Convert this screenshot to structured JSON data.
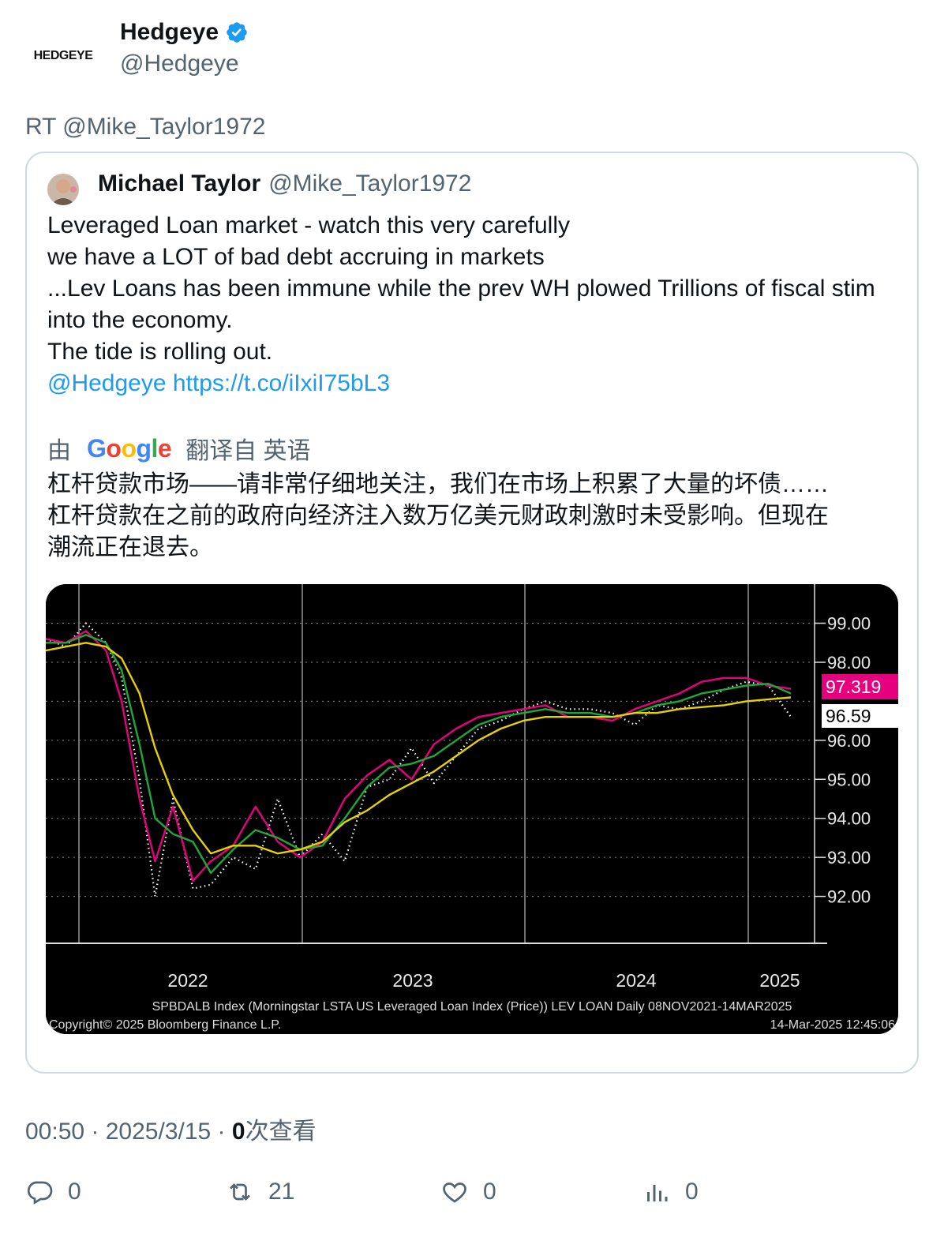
{
  "author": {
    "logo_text": "HEDGEYE",
    "display_name": "Hedgeye",
    "handle": "@Hedgeye"
  },
  "retweet_line": "RT @Mike_Taylor1972",
  "quoted": {
    "display_name": "Michael Taylor",
    "handle": "@Mike_Taylor1972",
    "lines": [
      "Leveraged Loan market - watch this very carefully",
      "we have a LOT of bad debt accruing in markets",
      "...Lev Loans has been immune while the prev WH plowed Trillions of fiscal stim into the economy.",
      "The tide is rolling out."
    ],
    "mention": "@Hedgeye",
    "link": "https://t.co/iIxiI75bL3",
    "translate": {
      "by": "由",
      "brand": "Google",
      "from": "翻译自 英语"
    },
    "translation_lines": [
      "杠杆贷款市场——请非常仔细地关注，我们在市场上积累了大量的坏债……",
      "杠杆贷款在之前的政府向经济注入数万亿美元财政刺激时未受影响。但现在",
      "潮流正在退去。"
    ]
  },
  "meta": {
    "time": "00:50",
    "sep1": " · ",
    "date": "2025/3/15",
    "sep2": " · ",
    "views_count": "0",
    "views_label": "次查看"
  },
  "actions": {
    "replies": "0",
    "retweets": "21",
    "likes": "0",
    "views": "0"
  },
  "icons": {
    "verified": "verified-badge-icon",
    "reply": "reply-icon",
    "retweet": "retweet-icon",
    "like": "heart-icon",
    "views": "analytics-icon"
  },
  "colors": {
    "link": "#1d9bf0",
    "muted": "#536471",
    "price_line": "#ffffff",
    "ma_fast": "#e6007e",
    "ma_mid": "#1ea83a",
    "ma_slow": "#e6d200",
    "last_label_bg": "#e6007e"
  },
  "chart_data": {
    "type": "line",
    "footer": "SPBDALB Index (Morningstar LSTA US Leveraged Loan Index (Price)) LEV LOAN  Daily 08NOV2021-14MAR2025",
    "copyright": "Copyright© 2025 Bloomberg Finance L.P.",
    "timestamp": "14-Mar-2025 12:45:06",
    "x_ticks": [
      "2022",
      "2023",
      "2024",
      "2025"
    ],
    "y_ticks": [
      "99.00",
      "98.00",
      "96.00",
      "95.00",
      "94.00",
      "93.00",
      "92.00"
    ],
    "ylim": [
      91,
      99.8
    ],
    "last_labels": [
      {
        "text": "97.319",
        "value": 97.319,
        "color": "#e6007e"
      },
      {
        "text": "96.59",
        "value": 96.59,
        "color": "#ffffff"
      }
    ],
    "x": [
      2021.86,
      2021.95,
      2022.04,
      2022.13,
      2022.2,
      2022.28,
      2022.35,
      2022.43,
      2022.52,
      2022.6,
      2022.7,
      2022.8,
      2022.9,
      2023.0,
      2023.1,
      2023.2,
      2023.3,
      2023.4,
      2023.5,
      2023.6,
      2023.7,
      2023.8,
      2023.9,
      2024.0,
      2024.1,
      2024.2,
      2024.3,
      2024.4,
      2024.5,
      2024.6,
      2024.7,
      2024.8,
      2024.9,
      2025.0,
      2025.1,
      2025.2
    ],
    "series": [
      {
        "color": "white",
        "style": "dotted",
        "values": [
          98.6,
          98.4,
          99.0,
          98.5,
          97.6,
          95.0,
          92.0,
          94.5,
          92.2,
          92.3,
          93.0,
          92.7,
          94.5,
          93.0,
          93.6,
          92.9,
          94.8,
          95.0,
          95.8,
          94.9,
          95.6,
          96.3,
          96.5,
          96.8,
          97.0,
          96.8,
          96.8,
          96.7,
          96.4,
          96.9,
          96.8,
          97.0,
          97.3,
          97.5,
          97.4,
          96.6
        ]
      },
      {
        "color": "magenta",
        "values": [
          98.6,
          98.5,
          98.8,
          98.3,
          97.0,
          94.5,
          92.9,
          94.3,
          92.4,
          92.9,
          93.3,
          94.3,
          93.4,
          93.0,
          93.4,
          94.5,
          95.1,
          95.5,
          95.0,
          95.9,
          96.3,
          96.6,
          96.7,
          96.8,
          96.9,
          96.6,
          96.6,
          96.5,
          96.8,
          97.0,
          97.2,
          97.5,
          97.6,
          97.6,
          97.4,
          97.32
        ]
      },
      {
        "color": "green",
        "values": [
          98.5,
          98.5,
          98.7,
          98.5,
          97.8,
          95.9,
          94.0,
          93.6,
          93.4,
          92.6,
          93.2,
          93.7,
          93.5,
          93.2,
          93.3,
          94.0,
          94.8,
          95.3,
          95.4,
          95.6,
          96.0,
          96.4,
          96.6,
          96.7,
          96.8,
          96.7,
          96.7,
          96.6,
          96.7,
          96.9,
          97.0,
          97.2,
          97.3,
          97.4,
          97.45,
          97.2
        ]
      },
      {
        "color": "yellow",
        "values": [
          98.3,
          98.4,
          98.5,
          98.4,
          98.1,
          97.2,
          95.8,
          94.6,
          93.7,
          93.1,
          93.3,
          93.3,
          93.1,
          93.2,
          93.4,
          93.9,
          94.2,
          94.6,
          94.9,
          95.2,
          95.6,
          96.0,
          96.3,
          96.5,
          96.6,
          96.6,
          96.6,
          96.6,
          96.7,
          96.7,
          96.8,
          96.85,
          96.9,
          97.0,
          97.05,
          97.1
        ]
      }
    ]
  }
}
